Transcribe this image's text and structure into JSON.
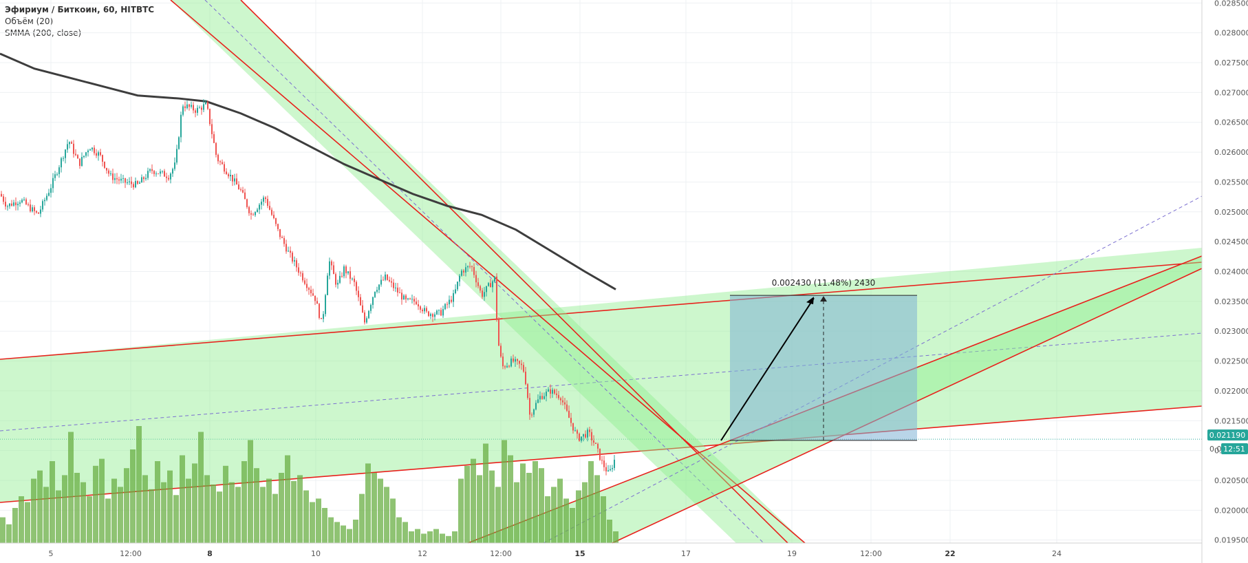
{
  "legend": {
    "symbol": "Эфириум / Биткоин, 60, HITBTC",
    "volume": "Объём (20)",
    "smma": "SMMA (200, close)"
  },
  "measurement": {
    "label": "0.002430 (11.48%) 2430",
    "from_price": 0.02117,
    "to_price": 0.0236
  },
  "price_badges": {
    "last_price": "0.021190",
    "countdown_prefix": "0.0",
    "countdown": "12:51"
  },
  "colors": {
    "up": "#26a69a",
    "down": "#ef5350",
    "channel_line": "#e8201b",
    "channel_fill": "#90ee90",
    "smma": "#3d3d3d",
    "volume": "#6aaf44",
    "measure_box": "#7fb3d5",
    "badge": "#26a69a"
  },
  "chart_data": {
    "type": "candlestick",
    "title": "Эфириум / Биткоин, 60, HITBTC",
    "y_axis": {
      "side": "right",
      "range": [
        0.01945,
        0.02855
      ],
      "ticks": [
        "0.028500",
        "0.028000",
        "0.027500",
        "0.027000",
        "0.026500",
        "0.026000",
        "0.025500",
        "0.025000",
        "0.024500",
        "0.024000",
        "0.023500",
        "0.023000",
        "0.022500",
        "0.022000",
        "0.021500",
        "0.021000",
        "0.020500",
        "0.020000",
        "0.019500"
      ]
    },
    "x_axis": {
      "ticks": [
        {
          "label": "5",
          "bold": false
        },
        {
          "label": "12:00",
          "bold": false
        },
        {
          "label": "8",
          "bold": true
        },
        {
          "label": "10",
          "bold": false
        },
        {
          "label": "12",
          "bold": false
        },
        {
          "label": "12:00",
          "bold": false
        },
        {
          "label": "15",
          "bold": true
        },
        {
          "label": "17",
          "bold": false
        },
        {
          "label": "19",
          "bold": false
        },
        {
          "label": "12:00",
          "bold": false
        },
        {
          "label": "22",
          "bold": true
        },
        {
          "label": "24",
          "bold": false
        }
      ]
    },
    "close_path": [
      [
        0,
        0.0253
      ],
      [
        10,
        0.0251
      ],
      [
        30,
        0.0252
      ],
      [
        55,
        0.02495
      ],
      [
        75,
        0.02545
      ],
      [
        90,
        0.0259
      ],
      [
        100,
        0.0262
      ],
      [
        115,
        0.0258
      ],
      [
        130,
        0.0261
      ],
      [
        145,
        0.02595
      ],
      [
        160,
        0.0256
      ],
      [
        180,
        0.0255
      ],
      [
        200,
        0.02545
      ],
      [
        220,
        0.0257
      ],
      [
        245,
        0.0256
      ],
      [
        255,
        0.0258
      ],
      [
        265,
        0.0268
      ],
      [
        285,
        0.0267
      ],
      [
        300,
        0.0268
      ],
      [
        315,
        0.0259
      ],
      [
        335,
        0.0256
      ],
      [
        350,
        0.02535
      ],
      [
        365,
        0.02495
      ],
      [
        385,
        0.02525
      ],
      [
        405,
        0.02465
      ],
      [
        420,
        0.0243
      ],
      [
        440,
        0.0239
      ],
      [
        458,
        0.02355
      ],
      [
        468,
        0.0231
      ],
      [
        478,
        0.0242
      ],
      [
        490,
        0.02375
      ],
      [
        500,
        0.02405
      ],
      [
        515,
        0.0238
      ],
      [
        530,
        0.02315
      ],
      [
        545,
        0.0237
      ],
      [
        560,
        0.0239
      ],
      [
        575,
        0.0237
      ],
      [
        590,
        0.0235
      ],
      [
        605,
        0.0235
      ],
      [
        620,
        0.0233
      ],
      [
        640,
        0.0233
      ],
      [
        660,
        0.0236
      ],
      [
        670,
        0.024
      ],
      [
        685,
        0.0241
      ],
      [
        700,
        0.0236
      ],
      [
        720,
        0.0239
      ],
      [
        723,
        0.0229
      ],
      [
        730,
        0.0224
      ],
      [
        745,
        0.0225
      ],
      [
        760,
        0.0224
      ],
      [
        765,
        0.0221
      ],
      [
        770,
        0.0216
      ],
      [
        785,
        0.0219
      ],
      [
        800,
        0.022
      ],
      [
        815,
        0.0219
      ],
      [
        825,
        0.0216
      ],
      [
        840,
        0.0212
      ],
      [
        855,
        0.0213
      ],
      [
        865,
        0.0211
      ],
      [
        875,
        0.0208
      ],
      [
        885,
        0.0206
      ],
      [
        895,
        0.0209
      ]
    ],
    "smma_path": [
      [
        0,
        0.02765
      ],
      [
        50,
        0.0274
      ],
      [
        100,
        0.02725
      ],
      [
        150,
        0.0271
      ],
      [
        200,
        0.02695
      ],
      [
        260,
        0.0269
      ],
      [
        300,
        0.02685
      ],
      [
        350,
        0.02665
      ],
      [
        400,
        0.0264
      ],
      [
        450,
        0.0261
      ],
      [
        500,
        0.0258
      ],
      [
        550,
        0.02555
      ],
      [
        600,
        0.0253
      ],
      [
        650,
        0.0251
      ],
      [
        700,
        0.02495
      ],
      [
        750,
        0.0247
      ],
      [
        800,
        0.02435
      ],
      [
        850,
        0.024
      ],
      [
        895,
        0.0237
      ]
    ],
    "volume_max_height": 170,
    "volume_heights": [
      0.22,
      0.16,
      0.3,
      0.4,
      0.35,
      0.55,
      0.62,
      0.48,
      0.7,
      0.45,
      0.58,
      0.95,
      0.6,
      0.52,
      0.4,
      0.66,
      0.72,
      0.38,
      0.55,
      0.48,
      0.64,
      0.8,
      1.0,
      0.58,
      0.46,
      0.7,
      0.52,
      0.62,
      0.41,
      0.75,
      0.55,
      0.68,
      0.95,
      0.58,
      0.5,
      0.44,
      0.66,
      0.52,
      0.48,
      0.7,
      0.88,
      0.64,
      0.48,
      0.55,
      0.42,
      0.6,
      0.75,
      0.53,
      0.58,
      0.45,
      0.35,
      0.38,
      0.3,
      0.22,
      0.18,
      0.15,
      0.12,
      0.2,
      0.42,
      0.68,
      0.6,
      0.55,
      0.48,
      0.38,
      0.22,
      0.18,
      0.1,
      0.12,
      0.08,
      0.1,
      0.12,
      0.08,
      0.06,
      0.1,
      0.55,
      0.66,
      0.72,
      0.58,
      0.85,
      0.62,
      0.48,
      0.88,
      0.75,
      0.52,
      0.68,
      0.6,
      0.7,
      0.64,
      0.4,
      0.48,
      0.55,
      0.38,
      0.3,
      0.45,
      0.52,
      0.7,
      0.58,
      0.4,
      0.2,
      0.1
    ]
  }
}
